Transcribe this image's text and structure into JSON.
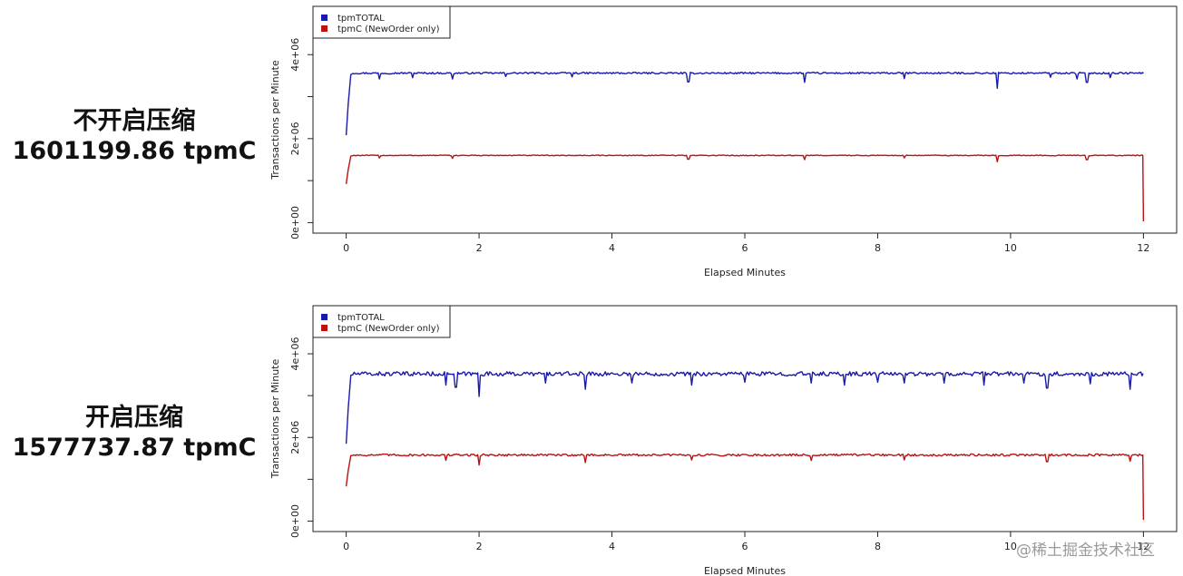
{
  "panels": [
    {
      "label_title": "不开启压缩",
      "label_value": "1601199.86 tpmC",
      "chart_data": {
        "type": "line",
        "xlabel": "Elapsed Minutes",
        "ylabel": "Transactions per Minute",
        "xlim": [
          -0.5,
          12.5
        ],
        "ylim": [
          -250000,
          5150000
        ],
        "xticks": [
          0,
          2,
          4,
          6,
          8,
          10,
          12
        ],
        "yticks": [
          0,
          2000000,
          4000000
        ],
        "ytick_labels": [
          "0e+00",
          "2e+06",
          "4e+06"
        ],
        "legend_position": "top-left",
        "series": [
          {
            "name": "tpmTOTAL",
            "color": "#1a1aaa",
            "start": 2080000,
            "level": 3560000,
            "end": 3580000,
            "noise": 20000,
            "dips": [
              [
                0.5,
                3420000
              ],
              [
                1.0,
                3450000
              ],
              [
                1.6,
                3420000
              ],
              [
                2.4,
                3480000
              ],
              [
                3.4,
                3470000
              ],
              [
                5.15,
                3350000
              ],
              [
                6.9,
                3340000
              ],
              [
                8.4,
                3430000
              ],
              [
                9.8,
                3200000
              ],
              [
                10.6,
                3460000
              ],
              [
                11.0,
                3420000
              ],
              [
                11.15,
                3340000
              ],
              [
                11.5,
                3450000
              ]
            ]
          },
          {
            "name": "tpmC (NewOrder only)",
            "color": "#bb1111",
            "start": 920000,
            "level": 1600000,
            "end": 30000,
            "noise": 10000,
            "dips": [
              [
                0.5,
                1540000
              ],
              [
                1.6,
                1530000
              ],
              [
                5.15,
                1510000
              ],
              [
                6.9,
                1500000
              ],
              [
                8.4,
                1540000
              ],
              [
                9.8,
                1450000
              ],
              [
                11.15,
                1500000
              ]
            ]
          }
        ]
      }
    },
    {
      "label_title": "开启压缩",
      "label_value": "1577737.87 tpmC",
      "chart_data": {
        "type": "line",
        "xlabel": "Elapsed Minutes",
        "ylabel": "Transactions per Minute",
        "xlim": [
          -0.5,
          12.5
        ],
        "ylim": [
          -250000,
          5150000
        ],
        "xticks": [
          0,
          2,
          4,
          6,
          8,
          10,
          12
        ],
        "yticks": [
          0,
          2000000,
          4000000
        ],
        "ytick_labels": [
          "0e+00",
          "2e+06",
          "4e+06"
        ],
        "legend_position": "top-left",
        "series": [
          {
            "name": "tpmTOTAL",
            "color": "#1a1aaa",
            "start": 1850000,
            "level": 3520000,
            "end": 3520000,
            "noise": 50000,
            "dips": [
              [
                1.5,
                3250000
              ],
              [
                1.65,
                3200000
              ],
              [
                2.0,
                2980000
              ],
              [
                3.0,
                3300000
              ],
              [
                3.6,
                3150000
              ],
              [
                4.3,
                3300000
              ],
              [
                5.2,
                3250000
              ],
              [
                6.0,
                3320000
              ],
              [
                7.0,
                3300000
              ],
              [
                7.5,
                3250000
              ],
              [
                8.0,
                3320000
              ],
              [
                8.4,
                3300000
              ],
              [
                9.0,
                3300000
              ],
              [
                9.6,
                3250000
              ],
              [
                10.2,
                3300000
              ],
              [
                10.55,
                3180000
              ],
              [
                11.2,
                3280000
              ],
              [
                11.8,
                3150000
              ]
            ]
          },
          {
            "name": "tpmC (NewOrder only)",
            "color": "#bb1111",
            "start": 830000,
            "level": 1580000,
            "end": 30000,
            "noise": 25000,
            "dips": [
              [
                1.5,
                1450000
              ],
              [
                2.0,
                1340000
              ],
              [
                3.6,
                1400000
              ],
              [
                5.2,
                1460000
              ],
              [
                7.0,
                1450000
              ],
              [
                8.4,
                1460000
              ],
              [
                10.55,
                1420000
              ],
              [
                11.8,
                1430000
              ]
            ]
          }
        ]
      }
    }
  ],
  "watermark": "@稀土掘金技术社区"
}
